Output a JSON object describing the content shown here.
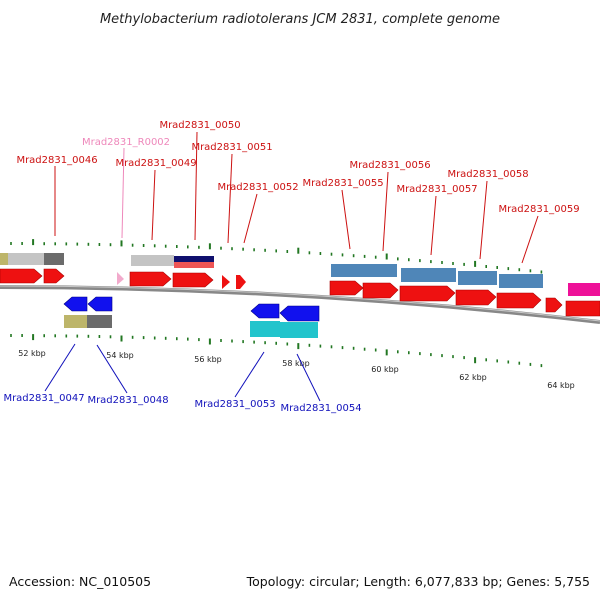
{
  "title": "Methylobacterium radiotolerans JCM 2831, complete genome",
  "footer": {
    "accession": "Accession: NC_010505",
    "summary": "Topology: circular; Length: 6,077,833 bp; Genes: 5,755"
  },
  "colors": {
    "forward_gene": "#ee1111",
    "reverse_gene": "#1111ee",
    "forward_label": "#cc1111",
    "reverse_label": "#1111bb",
    "rna_label": "#ee88bb",
    "tick": "#227722",
    "backbone": "#888888",
    "cog_steelblue": "#4f86b8",
    "cog_cyan": "#22c4cc",
    "cog_khaki": "#bdb56a",
    "cog_gray": "#6b6b6b",
    "cog_navy": "#10106e",
    "cog_lightgray": "#c4c4c4",
    "cog_magenta": "#ee1199"
  },
  "scale_labels": [
    "52 kbp",
    "54 kbp",
    "56 kbp",
    "58 kbp",
    "60 kbp",
    "62 kbp",
    "64 kbp"
  ],
  "forward_labels": [
    "Mrad2831_0046",
    "Mrad2831_R0002",
    "Mrad2831_0049",
    "Mrad2831_0050",
    "Mrad2831_0051",
    "Mrad2831_0052",
    "Mrad2831_0055",
    "Mrad2831_0056",
    "Mrad2831_0057",
    "Mrad2831_0058",
    "Mrad2831_0059"
  ],
  "reverse_labels": [
    "Mrad2831_0047",
    "Mrad2831_0048",
    "Mrad2831_0053",
    "Mrad2831_0054"
  ]
}
